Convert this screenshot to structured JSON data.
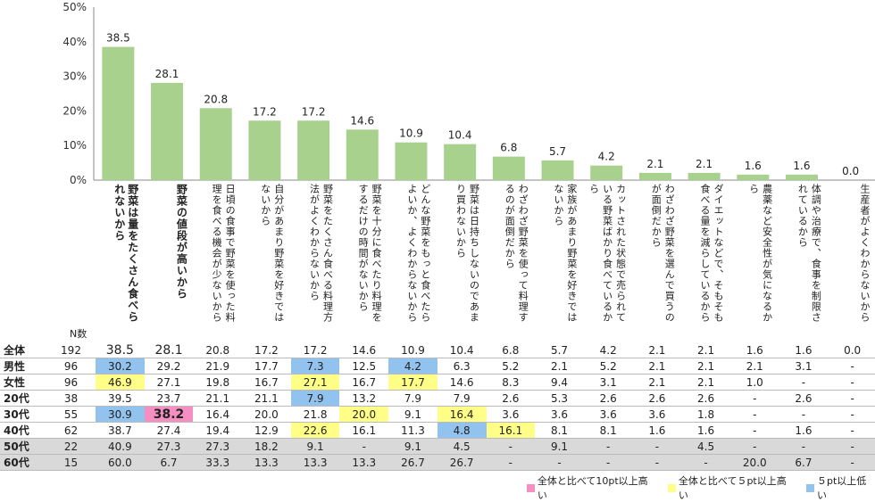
{
  "chart_data": {
    "type": "bar",
    "y_ticks": [
      "50%",
      "40%",
      "30%",
      "20%",
      "10%",
      "0%"
    ],
    "ylim": [
      0,
      50
    ],
    "bar_color": "#a9d18e",
    "categories": [
      "野菜は量をたくさん食べられないから",
      "野菜の値段が高いから",
      "日頃の食事で野菜を使った料理を食べる機会が少ないから",
      "自分があまり野菜を好きではないから",
      "野菜をたくさん食べる料理方法がよくわからないから",
      "野菜を十分に食べたり料理をするだけの時間がないから",
      "どんな野菜をもっと食べたらよいか、よくわからないから",
      "野菜は日持ちしないのであまり買わないから",
      "わざわざ野菜を使って料理するのが面倒だから",
      "家族があまり野菜を好きではないから",
      "カットされた状態で売られている野菜ばかり食べているから",
      "わざわざ野菜を選んで買うのが面倒だから",
      "ダイエットなどで、そもそも食べる量を減らしているから",
      "農薬など安全性が気になるから",
      "体調や治療で、食事を制限されているから",
      "生産者がよくわからないから"
    ],
    "values": [
      38.5,
      28.1,
      20.8,
      17.2,
      17.2,
      14.6,
      10.9,
      10.4,
      6.8,
      5.7,
      4.2,
      2.1,
      2.1,
      1.6,
      1.6,
      0.0
    ],
    "value_labels": [
      "38.5",
      "28.1",
      "20.8",
      "17.2",
      "17.2",
      "14.6",
      "10.9",
      "10.4",
      "6.8",
      "5.7",
      "4.2",
      "2.1",
      "2.1",
      "1.6",
      "1.6",
      "0.0"
    ],
    "bold_categories": [
      0,
      1
    ]
  },
  "table": {
    "n_header": "N数",
    "rows": [
      {
        "label": "全体",
        "n": "192",
        "cells": [
          "38.5",
          "28.1",
          "20.8",
          "17.2",
          "17.2",
          "14.6",
          "10.9",
          "10.4",
          "6.8",
          "5.7",
          "4.2",
          "2.1",
          "2.1",
          "1.6",
          "1.6",
          "0.0"
        ],
        "hl": [
          "big",
          "big",
          "",
          "",
          "",
          "",
          "",
          "",
          "",
          "",
          "",
          "",
          "",
          "",
          "",
          ""
        ],
        "gray": false
      },
      {
        "label": "男性",
        "n": "96",
        "cells": [
          "30.2",
          "29.2",
          "21.9",
          "17.7",
          "7.3",
          "12.5",
          "4.2",
          "6.3",
          "5.2",
          "2.1",
          "5.2",
          "2.1",
          "2.1",
          "2.1",
          "3.1",
          "-"
        ],
        "hl": [
          "blue",
          "",
          "",
          "",
          "blue",
          "",
          "blue",
          "",
          "",
          "",
          "",
          "",
          "",
          "",
          "",
          ""
        ],
        "gray": false
      },
      {
        "label": "女性",
        "n": "96",
        "cells": [
          "46.9",
          "27.1",
          "19.8",
          "16.7",
          "27.1",
          "16.7",
          "17.7",
          "14.6",
          "8.3",
          "9.4",
          "3.1",
          "2.1",
          "2.1",
          "1.0",
          "-",
          "-"
        ],
        "hl": [
          "yellow",
          "",
          "",
          "",
          "yellow",
          "",
          "yellow",
          "",
          "",
          "",
          "",
          "",
          "",
          "",
          "",
          ""
        ],
        "gray": false
      },
      {
        "label": "20代",
        "n": "38",
        "cells": [
          "39.5",
          "23.7",
          "21.1",
          "21.1",
          "7.9",
          "13.2",
          "7.9",
          "7.9",
          "2.6",
          "5.3",
          "2.6",
          "2.6",
          "2.6",
          "-",
          "2.6",
          "-"
        ],
        "hl": [
          "",
          "",
          "",
          "",
          "blue",
          "",
          "",
          "",
          "",
          "",
          "",
          "",
          "",
          "",
          "",
          ""
        ],
        "gray": false
      },
      {
        "label": "30代",
        "n": "55",
        "cells": [
          "30.9",
          "38.2",
          "16.4",
          "20.0",
          "21.8",
          "20.0",
          "9.1",
          "16.4",
          "3.6",
          "3.6",
          "3.6",
          "3.6",
          "1.8",
          "-",
          "-",
          "-"
        ],
        "hl": [
          "blue",
          "pink",
          "",
          "",
          "",
          "yellow",
          "",
          "yellow",
          "",
          "",
          "",
          "",
          "",
          "",
          "",
          ""
        ],
        "gray": false
      },
      {
        "label": "40代",
        "n": "62",
        "cells": [
          "38.7",
          "27.4",
          "19.4",
          "12.9",
          "22.6",
          "16.1",
          "11.3",
          "4.8",
          "16.1",
          "8.1",
          "8.1",
          "1.6",
          "1.6",
          "-",
          "1.6",
          "-"
        ],
        "hl": [
          "",
          "",
          "",
          "",
          "yellow",
          "",
          "",
          "blue",
          "yellow",
          "",
          "",
          "",
          "",
          "",
          "",
          ""
        ],
        "gray": false
      },
      {
        "label": "50代",
        "n": "22",
        "cells": [
          "40.9",
          "27.3",
          "27.3",
          "18.2",
          "9.1",
          "-",
          "9.1",
          "4.5",
          "-",
          "9.1",
          "-",
          "-",
          "4.5",
          "-",
          "-",
          "-"
        ],
        "hl": [
          "",
          "",
          "",
          "",
          "",
          "",
          "",
          "",
          "",
          "",
          "",
          "",
          "",
          "",
          "",
          ""
        ],
        "gray": true
      },
      {
        "label": "60代",
        "n": "15",
        "cells": [
          "60.0",
          "6.7",
          "33.3",
          "13.3",
          "13.3",
          "13.3",
          "26.7",
          "26.7",
          "-",
          "-",
          "-",
          "-",
          "-",
          "20.0",
          "6.7",
          "-"
        ],
        "hl": [
          "",
          "",
          "",
          "",
          "",
          "",
          "",
          "",
          "",
          "",
          "",
          "",
          "",
          "",
          "",
          ""
        ],
        "gray": true
      }
    ]
  },
  "legend": [
    {
      "label": "全体と比べて10pt以上高い",
      "color": "#f58fc2"
    },
    {
      "label": "全体と比べて５pt以上高い",
      "color": "#ffff88"
    },
    {
      "label": "５pt以上低い",
      "color": "#92c3ee"
    }
  ]
}
